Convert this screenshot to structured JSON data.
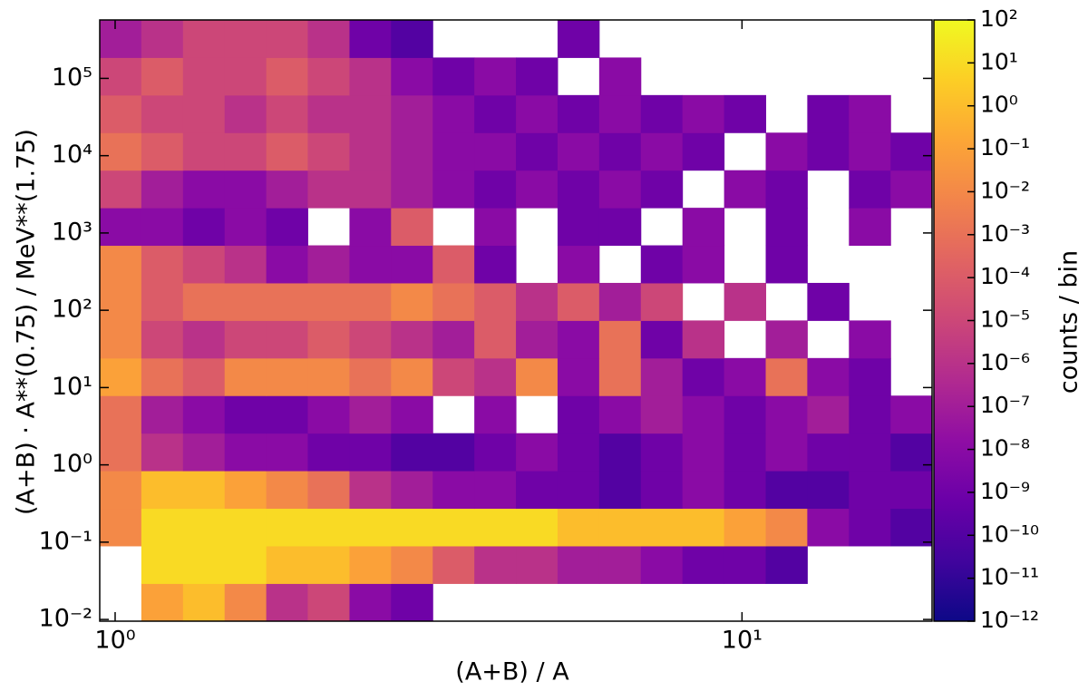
{
  "chart_data": {
    "type": "heatmap",
    "xlabel": "(A+B) / A",
    "ylabel": "(A+B) · A**(0.75) / MeV**(1.75)",
    "colorbar_label": "counts / bin",
    "colormap": "plasma",
    "xlog": true,
    "ylog": true,
    "clog": true,
    "xlim": [
      0.945,
      20.1
    ],
    "ylim": [
      0.0095,
      570000
    ],
    "clim": [
      1e-12,
      100
    ],
    "xticks": [
      {
        "value": 1,
        "label": "10⁰"
      },
      {
        "value": 10,
        "label": "10¹"
      }
    ],
    "yticks": [
      {
        "value": 0.01,
        "label": "10⁻²"
      },
      {
        "value": 0.1,
        "label": "10⁻¹"
      },
      {
        "value": 1,
        "label": "10⁰"
      },
      {
        "value": 10,
        "label": "10¹"
      },
      {
        "value": 100,
        "label": "10²"
      },
      {
        "value": 1000,
        "label": "10³"
      },
      {
        "value": 10000,
        "label": "10⁴"
      },
      {
        "value": 100000,
        "label": "10⁵"
      }
    ],
    "cticks": [
      {
        "value": 1e-12,
        "label": "10⁻¹²"
      },
      {
        "value": 1e-11,
        "label": "10⁻¹¹"
      },
      {
        "value": 1e-10,
        "label": "10⁻¹⁰"
      },
      {
        "value": 1e-09,
        "label": "10⁻⁹"
      },
      {
        "value": 1e-08,
        "label": "10⁻⁸"
      },
      {
        "value": 1e-07,
        "label": "10⁻⁷"
      },
      {
        "value": 1e-06,
        "label": "10⁻⁶"
      },
      {
        "value": 1e-05,
        "label": "10⁻⁵"
      },
      {
        "value": 0.0001,
        "label": "10⁻⁴"
      },
      {
        "value": 0.001,
        "label": "10⁻³"
      },
      {
        "value": 0.01,
        "label": "10⁻²"
      },
      {
        "value": 0.1,
        "label": "10⁻¹"
      },
      {
        "value": 1,
        "label": "10⁰"
      },
      {
        "value": 10,
        "label": "10¹"
      },
      {
        "value": 100,
        "label": "10²"
      }
    ],
    "xbins": [
      0.945,
      1.101,
      1.283,
      1.495,
      1.742,
      2.029,
      2.365,
      2.755,
      3.211,
      3.741,
      4.359,
      5.079,
      5.918,
      6.896,
      8.035,
      9.363,
      10.91,
      12.71,
      14.81,
      17.26,
      20.1
    ],
    "ybins": [
      0.0095,
      0.0292,
      0.0895,
      0.274,
      0.84,
      2.57,
      7.87,
      24.1,
      73.8,
      226,
      692,
      2118,
      6486,
      19860,
      60810,
      186200,
      570000
    ],
    "values": [
      [
        null,
        0.1,
        1.0,
        0.01,
        1e-06,
        1e-05,
        1e-08,
        1e-09,
        null,
        null,
        null,
        null,
        null,
        null,
        null,
        null,
        null,
        null,
        null,
        null
      ],
      [
        null,
        10.0,
        10.0,
        10.0,
        1.0,
        1.0,
        0.1,
        0.01,
        0.0001,
        1e-06,
        1e-06,
        1e-07,
        1e-07,
        1e-08,
        1e-09,
        1e-09,
        1e-10,
        null,
        null,
        null
      ],
      [
        0.01,
        10.0,
        10.0,
        10.0,
        10.0,
        10.0,
        10.0,
        10.0,
        10.0,
        10.0,
        10.0,
        1.0,
        1.0,
        1.0,
        1.0,
        0.1,
        0.01,
        1e-08,
        1e-09,
        1e-10
      ],
      [
        0.01,
        1.0,
        1.0,
        0.1,
        0.01,
        0.001,
        1e-06,
        1e-07,
        1e-08,
        1e-08,
        1e-09,
        1e-09,
        1e-10,
        1e-09,
        1e-08,
        1e-09,
        1e-10,
        1e-10,
        1e-09,
        1e-09
      ],
      [
        0.001,
        1e-06,
        1e-07,
        1e-08,
        1e-08,
        1e-09,
        1e-09,
        1e-10,
        1e-10,
        1e-09,
        1e-08,
        1e-09,
        1e-10,
        1e-09,
        1e-08,
        1e-09,
        1e-08,
        1e-09,
        1e-09,
        1e-10
      ],
      [
        0.001,
        1e-07,
        1e-08,
        1e-09,
        1e-09,
        1e-08,
        1e-07,
        1e-08,
        null,
        1e-08,
        null,
        1e-09,
        1e-08,
        1e-07,
        1e-08,
        1e-09,
        1e-08,
        1e-07,
        1e-09,
        1e-08
      ],
      [
        0.1,
        0.001,
        0.0001,
        0.01,
        0.01,
        0.01,
        0.001,
        0.01,
        1e-05,
        1e-06,
        0.01,
        1e-08,
        0.001,
        1e-07,
        1e-09,
        1e-08,
        0.001,
        1e-08,
        1e-09,
        null
      ],
      [
        0.01,
        1e-05,
        1e-06,
        1e-05,
        1e-05,
        0.0001,
        1e-05,
        1e-06,
        1e-07,
        0.0001,
        1e-07,
        1e-08,
        0.001,
        1e-09,
        1e-06,
        null,
        1e-07,
        null,
        1e-08,
        null
      ],
      [
        0.01,
        0.0001,
        0.001,
        0.001,
        0.001,
        0.001,
        0.001,
        0.01,
        0.001,
        0.0001,
        1e-06,
        0.0001,
        1e-07,
        1e-05,
        null,
        1e-06,
        null,
        1e-09,
        null,
        null
      ],
      [
        0.01,
        0.0001,
        1e-05,
        1e-06,
        1e-08,
        1e-07,
        1e-08,
        1e-08,
        0.0001,
        1e-09,
        null,
        1e-08,
        null,
        1e-09,
        1e-08,
        null,
        1e-09,
        null,
        null,
        null
      ],
      [
        1e-08,
        1e-08,
        1e-09,
        1e-08,
        1e-09,
        null,
        1e-08,
        0.0001,
        null,
        1e-08,
        null,
        1e-09,
        1e-09,
        null,
        1e-08,
        null,
        1e-09,
        null,
        1e-08,
        null
      ],
      [
        1e-05,
        1e-07,
        1e-08,
        1e-08,
        1e-07,
        1e-06,
        1e-06,
        1e-07,
        1e-08,
        1e-09,
        1e-08,
        1e-09,
        1e-08,
        1e-09,
        null,
        1e-08,
        1e-09,
        null,
        1e-09,
        1e-08
      ],
      [
        0.001,
        0.0001,
        1e-05,
        1e-05,
        0.0001,
        1e-05,
        1e-06,
        1e-07,
        1e-08,
        1e-08,
        1e-09,
        1e-08,
        1e-09,
        1e-08,
        1e-09,
        null,
        1e-08,
        1e-09,
        1e-08,
        1e-09
      ],
      [
        0.0001,
        1e-05,
        1e-05,
        1e-06,
        1e-05,
        1e-06,
        1e-06,
        1e-07,
        1e-08,
        1e-09,
        1e-08,
        1e-09,
        1e-08,
        1e-09,
        1e-08,
        1e-09,
        null,
        1e-09,
        1e-08,
        null
      ],
      [
        1e-05,
        0.0001,
        1e-05,
        1e-05,
        0.0001,
        1e-05,
        1e-06,
        1e-08,
        1e-09,
        1e-08,
        1e-09,
        null,
        1e-08,
        null,
        null,
        null,
        null,
        null,
        null,
        null
      ],
      [
        1e-07,
        1e-06,
        1e-05,
        1e-05,
        1e-05,
        1e-06,
        1e-09,
        1e-10,
        null,
        null,
        null,
        1e-09,
        null,
        null,
        null,
        null,
        null,
        null,
        null,
        null
      ]
    ]
  }
}
